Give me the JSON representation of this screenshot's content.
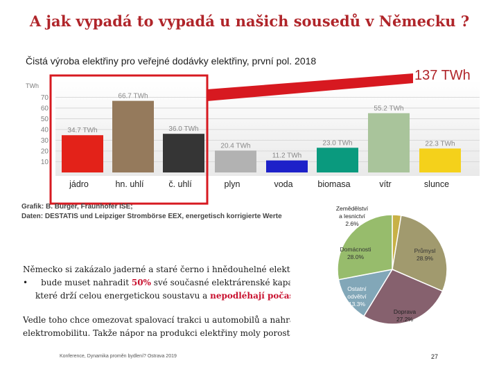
{
  "title": "A jak vypadá to vypadá u našich sousedů v Německu ?",
  "subtitle": "Čistá výroba elektřiny pro veřejné dodávky elektřiny, první pol. 2018",
  "total_label": "137 TWh",
  "credit": {
    "line1": "Grafik: B. Burger, Fraunhofer ISE;",
    "line2": "Daten: DESTATIS und Leipziger Strombörse EEX, energetisch korrigierte Werte"
  },
  "body": {
    "line1": "Německo si zakázalo jaderné a staré černo i hnědouhelné elektrárny",
    "bullet": "•",
    "line2_pre": "bude muset nahradit",
    "line2_red": "50%",
    "line2_post": "své současné elektrárenské kapacity,",
    "line3_pre": "které drží celou energetickou soustavu a",
    "line3_red": "nepodléhají počasí",
    "line4": "Vedle toho chce omezovat spalovací trakci u automobilů a nahradit ji",
    "line5": "elektromobilitu. Takže nápor na produkci elektřiny moly poroste!"
  },
  "footer": "Konference, Dynamika proměn bydlení? Ostrava 2019",
  "page_number": "27",
  "colors": {
    "title": "#b0252a",
    "callout": "#d71920"
  },
  "chart_data": [
    {
      "type": "bar",
      "title": "Čistá výroba elektřiny pro veřejné dodávky elektřiny, první pol. 2018",
      "ylabel": "TWh",
      "ylim": [
        0,
        70
      ],
      "yticks": [
        10,
        20,
        30,
        40,
        50,
        60,
        70
      ],
      "categories": [
        "jádro",
        "hn. uhlí",
        "č. uhlí",
        "plyn",
        "voda",
        "biomasa",
        "vítr",
        "slunce"
      ],
      "values": [
        34.7,
        66.7,
        36.0,
        20.4,
        11.2,
        23.0,
        55.2,
        22.3
      ],
      "value_labels": [
        "34.7 TWh",
        "66.7 TWh",
        "36.0 TWh",
        "20.4 TWh",
        "11.2 TWh",
        "23.0 TWh",
        "55.2 TWh",
        "22.3 TWh"
      ],
      "colors": [
        "#e32219",
        "#957a5c",
        "#353535",
        "#b2b2b2",
        "#1d21c9",
        "#0a9a7e",
        "#a9c49b",
        "#f4d11b"
      ]
    },
    {
      "type": "pie",
      "labels": [
        "Zemědělství a lesnictví",
        "Průmysl",
        "Doprava",
        "Ostatní odvětví",
        "Domácnosti"
      ],
      "label_lines": [
        [
          "Zemědělství",
          "a lesnictví"
        ],
        [
          "Průmysl"
        ],
        [
          "Doprava"
        ],
        [
          "Ostatní",
          "odvětví"
        ],
        [
          "Domácnosti"
        ]
      ],
      "values": [
        2.6,
        28.9,
        27.2,
        13.3,
        28.0
      ],
      "value_labels": [
        "2.6%",
        "28.9%",
        "27.2%",
        "13.3%",
        "28.0%"
      ],
      "colors": [
        "#c8b146",
        "#a19a6e",
        "#86616e",
        "#82a7b8",
        "#97bc6c"
      ]
    }
  ]
}
